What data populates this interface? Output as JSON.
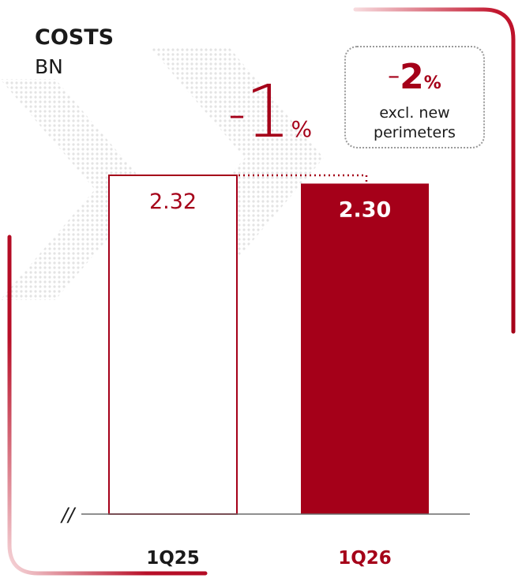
{
  "header": {
    "title": "COSTS",
    "unit": "BN"
  },
  "delta": {
    "sign": "–",
    "value": "1",
    "pct": "%"
  },
  "note": {
    "sign": "–",
    "value": "2",
    "pct": "%",
    "text_line1": "excl. new",
    "text_line2": "perimeters"
  },
  "axis": {
    "break_symbol": "//"
  },
  "colors": {
    "accent": "#a50019",
    "frame_gradient_start": "#f4c9cc",
    "text": "#1a1a1a"
  },
  "chart_data": {
    "type": "bar",
    "categories": [
      "1Q25",
      "1Q26"
    ],
    "values": [
      2.32,
      2.3
    ],
    "value_labels": [
      "2.32",
      "2.30"
    ],
    "title": "COSTS",
    "ylabel": "BN",
    "axis_break": true,
    "change_label": "–1%"
  }
}
